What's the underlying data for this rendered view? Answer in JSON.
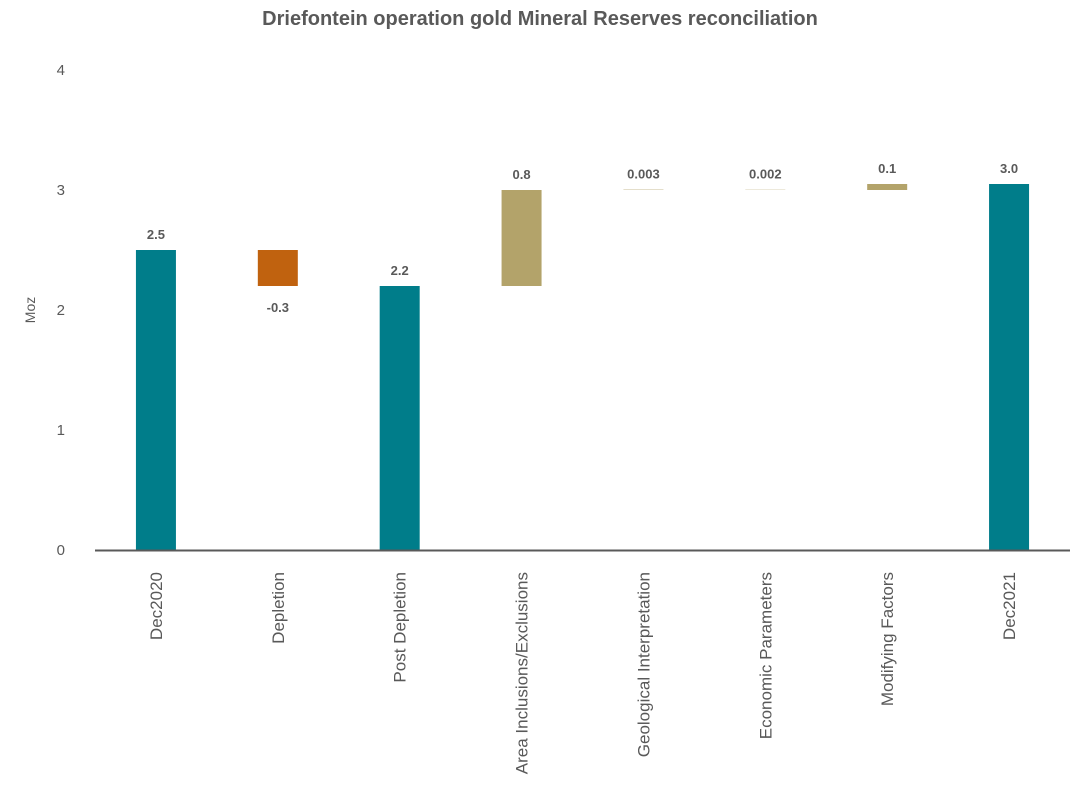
{
  "chart_data": {
    "type": "bar",
    "subtype": "waterfall",
    "title": "Driefontein operation gold Mineral Reserves reconciliation",
    "ylabel": "Moz",
    "xlabel": "",
    "ylim": [
      0,
      4
    ],
    "yticks": [
      "0",
      "1",
      "2",
      "3",
      "4"
    ],
    "grid": false,
    "categories": [
      "Dec2020",
      "Depletion",
      "Post Depletion",
      "Area Inclusions/Exclusions",
      "Geological Interpretation",
      "Economic Parameters",
      "Modifying Factors",
      "Dec2021"
    ],
    "bars": [
      {
        "category": "Dec2020",
        "kind": "total",
        "base": 0,
        "top": 2.5,
        "label": "2.5"
      },
      {
        "category": "Depletion",
        "kind": "decrease",
        "base": 2.2,
        "top": 2.5,
        "label": "-0.3"
      },
      {
        "category": "Post Depletion",
        "kind": "total",
        "base": 0,
        "top": 2.2,
        "label": "2.2"
      },
      {
        "category": "Area Inclusions/Exclusions",
        "kind": "increase",
        "base": 2.2,
        "top": 3.0,
        "label": "0.8"
      },
      {
        "category": "Geological Interpretation",
        "kind": "increase",
        "base": 3.0,
        "top": 3.003,
        "label": "0.003"
      },
      {
        "category": "Economic Parameters",
        "kind": "increase",
        "base": 3.003,
        "top": 3.005,
        "label": "0.002"
      },
      {
        "category": "Modifying Factors",
        "kind": "increase",
        "base": 3.0,
        "top": 3.05,
        "label": "0.1"
      },
      {
        "category": "Dec2021",
        "kind": "total",
        "base": 0,
        "top": 3.05,
        "label": "3.0"
      }
    ],
    "colors": {
      "total": "#007d8a",
      "decrease": "#c0620f",
      "increase": "#b3a36a",
      "axis": "#595959"
    }
  }
}
